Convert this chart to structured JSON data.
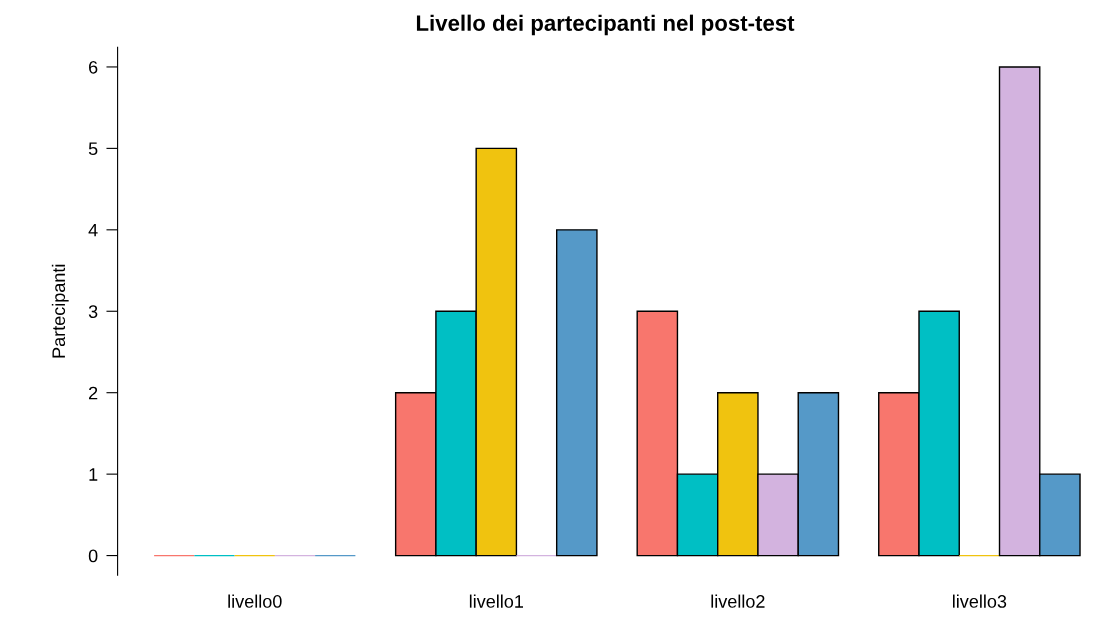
{
  "chart_data": {
    "type": "bar",
    "title": "Livello dei partecipanti nel post-test",
    "ylabel": "Partecipanti",
    "categories": [
      "livello0",
      "livello1",
      "livello2",
      "livello3"
    ],
    "series": [
      {
        "color": "#f8766d",
        "values": [
          0,
          2,
          3,
          2
        ]
      },
      {
        "color": "#00bfc4",
        "values": [
          0,
          3,
          1,
          3
        ]
      },
      {
        "color": "#f0c30f",
        "values": [
          0,
          5,
          2,
          0
        ]
      },
      {
        "color": "#d3b3df",
        "values": [
          0,
          0,
          1,
          6
        ]
      },
      {
        "color": "#5599c8",
        "values": [
          0,
          4,
          2,
          1
        ]
      }
    ],
    "ylim": [
      -0.24,
      6.24
    ],
    "yticks": [
      0,
      1,
      2,
      3,
      4,
      5,
      6
    ],
    "grid": false,
    "legend": false
  }
}
